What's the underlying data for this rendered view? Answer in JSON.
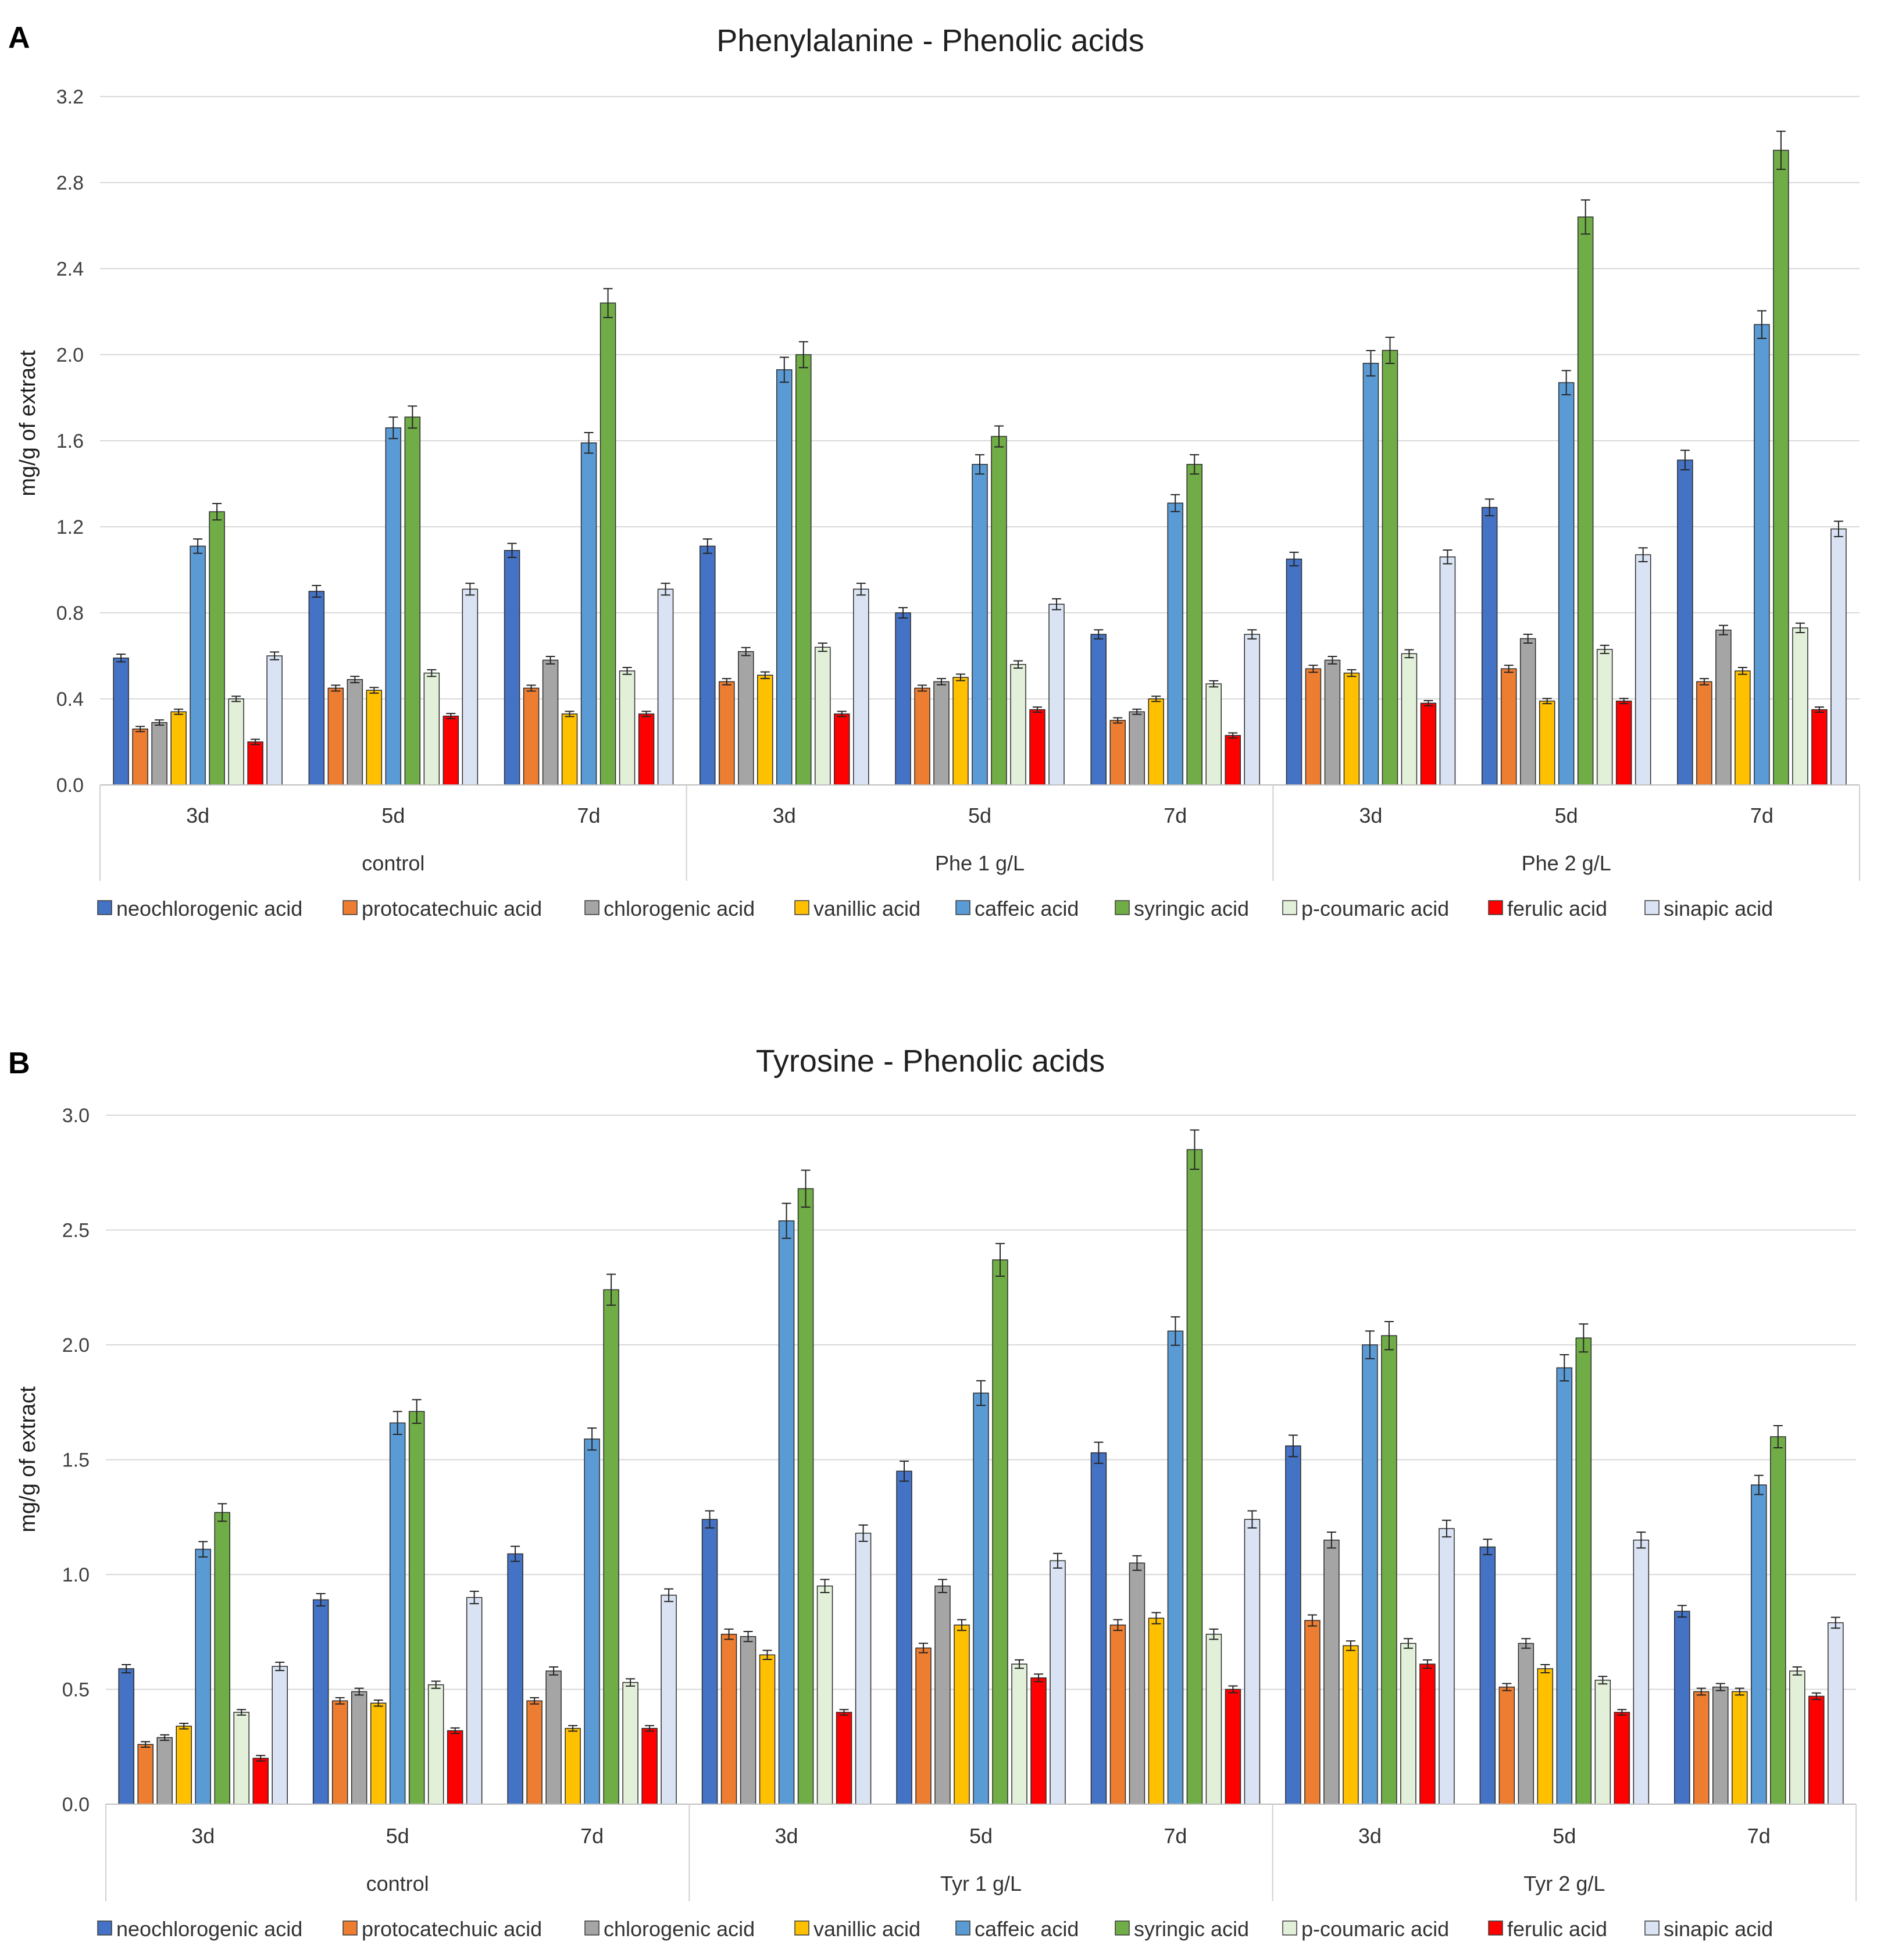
{
  "colors": {
    "neochlorogenic acid": "#4472C4",
    "protocatechuic acid": "#ED7D31",
    "chlorogenic acid": "#A5A5A5",
    "vanillic acid": "#FFC000",
    "caffeic acid": "#5B9BD5",
    "syringic acid": "#70AD47",
    "p-coumaric acid": "#E2F0D9",
    "ferulic acid": "#FF0000",
    "sinapic acid": "#DAE3F3"
  },
  "chart_data": [
    {
      "type": "bar",
      "panel": "A",
      "title": "Phenylalanine - Phenolic acids",
      "ylabel": "mg/g of extract",
      "xlabel": "",
      "ylim": [
        0,
        3.2
      ],
      "yticks": [
        "0.0",
        "0.4",
        "0.8",
        "1.2",
        "1.6",
        "2.0",
        "2.4",
        "2.8",
        "3.2"
      ],
      "ytick_values": [
        0,
        0.4,
        0.8,
        1.2,
        1.6,
        2.0,
        2.4,
        2.8,
        3.2
      ],
      "groups": [
        "control",
        "Phe 1 g/L",
        "Phe 2 g/L"
      ],
      "categories": [
        "3d",
        "5d",
        "7d",
        "3d",
        "5d",
        "7d",
        "3d",
        "5d",
        "7d"
      ],
      "series": [
        {
          "name": "neochlorogenic acid",
          "values": [
            0.59,
            0.9,
            1.09,
            1.11,
            0.8,
            0.7,
            1.05,
            1.29,
            1.51
          ]
        },
        {
          "name": "protocatechuic acid",
          "values": [
            0.26,
            0.45,
            0.45,
            0.48,
            0.45,
            0.3,
            0.54,
            0.54,
            0.48
          ]
        },
        {
          "name": "chlorogenic acid",
          "values": [
            0.29,
            0.49,
            0.58,
            0.62,
            0.48,
            0.34,
            0.58,
            0.68,
            0.72
          ]
        },
        {
          "name": "vanillic acid",
          "values": [
            0.34,
            0.44,
            0.33,
            0.51,
            0.5,
            0.4,
            0.52,
            0.39,
            0.53
          ]
        },
        {
          "name": "caffeic acid",
          "values": [
            1.11,
            1.66,
            1.59,
            1.93,
            1.49,
            1.31,
            1.96,
            1.87,
            2.14
          ]
        },
        {
          "name": "syringic acid",
          "values": [
            1.27,
            1.71,
            2.24,
            2.0,
            1.62,
            1.49,
            2.02,
            2.64,
            2.95
          ]
        },
        {
          "name": "p-coumaric acid",
          "values": [
            0.4,
            0.52,
            0.53,
            0.64,
            0.56,
            0.47,
            0.61,
            0.63,
            0.73
          ]
        },
        {
          "name": "ferulic acid",
          "values": [
            0.2,
            0.32,
            0.33,
            0.33,
            0.35,
            0.23,
            0.38,
            0.39,
            0.35
          ]
        },
        {
          "name": "sinapic acid",
          "values": [
            0.6,
            0.91,
            0.91,
            0.91,
            0.84,
            0.7,
            1.06,
            1.07,
            1.19
          ]
        }
      ]
    },
    {
      "type": "bar",
      "panel": "B",
      "title": "Tyrosine - Phenolic acids",
      "ylabel": "mg/g of extract",
      "xlabel": "",
      "ylim": [
        0,
        3.0
      ],
      "yticks": [
        "0.0",
        "0.5",
        "1.0",
        "1.5",
        "2.0",
        "2.5",
        "3.0"
      ],
      "ytick_values": [
        0,
        0.5,
        1.0,
        1.5,
        2.0,
        2.5,
        3.0
      ],
      "groups": [
        "control",
        "Tyr 1 g/L",
        "Tyr 2 g/L"
      ],
      "categories": [
        "3d",
        "5d",
        "7d",
        "3d",
        "5d",
        "7d",
        "3d",
        "5d",
        "7d"
      ],
      "series": [
        {
          "name": "neochlorogenic acid",
          "values": [
            0.59,
            0.89,
            1.09,
            1.24,
            1.45,
            1.53,
            1.56,
            1.12,
            0.84
          ]
        },
        {
          "name": "protocatechuic acid",
          "values": [
            0.26,
            0.45,
            0.45,
            0.74,
            0.68,
            0.78,
            0.8,
            0.51,
            0.49
          ]
        },
        {
          "name": "chlorogenic acid",
          "values": [
            0.29,
            0.49,
            0.58,
            0.73,
            0.95,
            1.05,
            1.15,
            0.7,
            0.51
          ]
        },
        {
          "name": "vanillic acid",
          "values": [
            0.34,
            0.44,
            0.33,
            0.65,
            0.78,
            0.81,
            0.69,
            0.59,
            0.49
          ]
        },
        {
          "name": "caffeic acid",
          "values": [
            1.11,
            1.66,
            1.59,
            2.54,
            1.79,
            2.06,
            2.0,
            1.9,
            1.39
          ]
        },
        {
          "name": "syringic acid",
          "values": [
            1.27,
            1.71,
            2.24,
            2.68,
            2.37,
            2.85,
            2.04,
            2.03,
            1.6
          ]
        },
        {
          "name": "p-coumaric acid",
          "values": [
            0.4,
            0.52,
            0.53,
            0.95,
            0.61,
            0.74,
            0.7,
            0.54,
            0.58
          ]
        },
        {
          "name": "ferulic acid",
          "values": [
            0.2,
            0.32,
            0.33,
            0.4,
            0.55,
            0.5,
            0.61,
            0.4,
            0.47
          ]
        },
        {
          "name": "sinapic acid",
          "values": [
            0.6,
            0.9,
            0.91,
            1.18,
            1.06,
            1.24,
            1.2,
            1.15,
            0.79
          ]
        }
      ]
    }
  ]
}
